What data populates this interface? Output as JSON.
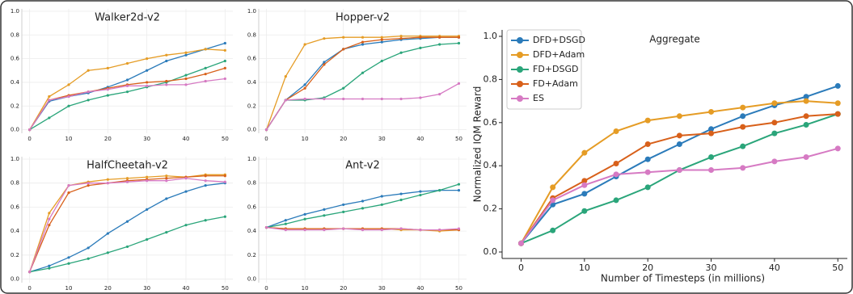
{
  "chart_data": [
    {
      "type": "line",
      "title": "Walker2d-v2",
      "x": [
        0,
        5,
        10,
        15,
        20,
        25,
        30,
        35,
        40,
        45,
        50
      ],
      "xlim": [
        -2,
        52
      ],
      "ylim": [
        -0.03,
        1.02
      ],
      "xticks": [
        0,
        10,
        20,
        30,
        40,
        50
      ],
      "yticks": [
        {
          "value": 0,
          "label": "0.0"
        },
        0.2,
        0.4,
        0.6,
        0.8,
        {
          "value": 1,
          "label": "1.0"
        }
      ],
      "grid": true,
      "series": [
        {
          "color": "#2b7bba",
          "values": [
            0,
            0.24,
            0.28,
            0.31,
            0.36,
            0.42,
            0.5,
            0.58,
            0.63,
            0.68,
            0.73
          ]
        },
        {
          "color": "#e59c25",
          "values": [
            0,
            0.28,
            0.38,
            0.5,
            0.52,
            0.56,
            0.6,
            0.63,
            0.65,
            0.68,
            0.67
          ]
        },
        {
          "color": "#2aa57a",
          "values": [
            0,
            0.1,
            0.2,
            0.25,
            0.29,
            0.32,
            0.36,
            0.4,
            0.46,
            0.52,
            0.58
          ]
        },
        {
          "color": "#d8601a",
          "values": [
            0,
            0.25,
            0.29,
            0.32,
            0.35,
            0.38,
            0.4,
            0.41,
            0.43,
            0.47,
            0.52
          ]
        },
        {
          "color": "#d67ac3",
          "values": [
            0,
            0.25,
            0.28,
            0.32,
            0.34,
            0.37,
            0.37,
            0.38,
            0.38,
            0.41,
            0.43
          ]
        }
      ]
    },
    {
      "type": "line",
      "title": "Hopper-v2",
      "x": [
        0,
        5,
        10,
        15,
        20,
        25,
        30,
        35,
        40,
        45,
        50
      ],
      "xlim": [
        -2,
        52
      ],
      "ylim": [
        -0.03,
        1.02
      ],
      "xticks": [
        0,
        10,
        20,
        30,
        40,
        50
      ],
      "yticks": [
        {
          "value": 0,
          "label": "0.0"
        },
        0.2,
        0.4,
        0.6,
        0.8,
        {
          "value": 1,
          "label": "1.0"
        }
      ],
      "grid": true,
      "series": [
        {
          "color": "#2b7bba",
          "values": [
            0,
            0.25,
            0.38,
            0.57,
            0.68,
            0.72,
            0.74,
            0.76,
            0.77,
            0.78,
            0.78
          ]
        },
        {
          "color": "#e59c25",
          "values": [
            0,
            0.45,
            0.72,
            0.77,
            0.78,
            0.78,
            0.78,
            0.79,
            0.79,
            0.79,
            0.79
          ]
        },
        {
          "color": "#2aa57a",
          "values": [
            0,
            0.25,
            0.25,
            0.27,
            0.35,
            0.48,
            0.58,
            0.65,
            0.69,
            0.72,
            0.73
          ]
        },
        {
          "color": "#d8601a",
          "values": [
            0,
            0.25,
            0.35,
            0.55,
            0.68,
            0.74,
            0.76,
            0.77,
            0.78,
            0.78,
            0.78
          ]
        },
        {
          "color": "#d67ac3",
          "values": [
            0,
            0.25,
            0.26,
            0.26,
            0.26,
            0.26,
            0.26,
            0.26,
            0.27,
            0.3,
            0.39
          ]
        }
      ]
    },
    {
      "type": "line",
      "title": "HalfCheetah-v2",
      "x": [
        0,
        5,
        10,
        15,
        20,
        25,
        30,
        35,
        40,
        45,
        50
      ],
      "xlim": [
        -2,
        52
      ],
      "ylim": [
        -0.03,
        1.02
      ],
      "xticks": [
        0,
        10,
        20,
        30,
        40,
        50
      ],
      "yticks": [
        {
          "value": 0,
          "label": "0.0"
        },
        0.2,
        0.4,
        0.6,
        0.8,
        {
          "value": 1,
          "label": "1.0"
        }
      ],
      "grid": true,
      "series": [
        {
          "color": "#2b7bba",
          "values": [
            0.06,
            0.11,
            0.18,
            0.26,
            0.38,
            0.48,
            0.58,
            0.67,
            0.73,
            0.78,
            0.8
          ]
        },
        {
          "color": "#e59c25",
          "values": [
            0.06,
            0.55,
            0.78,
            0.81,
            0.83,
            0.84,
            0.85,
            0.86,
            0.85,
            0.87,
            0.87
          ]
        },
        {
          "color": "#2aa57a",
          "values": [
            0.06,
            0.09,
            0.13,
            0.17,
            0.22,
            0.27,
            0.33,
            0.39,
            0.45,
            0.49,
            0.52
          ]
        },
        {
          "color": "#d8601a",
          "values": [
            0.06,
            0.45,
            0.72,
            0.78,
            0.8,
            0.82,
            0.83,
            0.84,
            0.85,
            0.86,
            0.86
          ]
        },
        {
          "color": "#d67ac3",
          "values": [
            0.06,
            0.5,
            0.78,
            0.8,
            0.8,
            0.81,
            0.82,
            0.82,
            0.84,
            0.82,
            0.81
          ]
        }
      ]
    },
    {
      "type": "line",
      "title": "Ant-v2",
      "x": [
        0,
        5,
        10,
        15,
        20,
        25,
        30,
        35,
        40,
        45,
        50
      ],
      "xlim": [
        -2,
        52
      ],
      "ylim": [
        -0.03,
        1.02
      ],
      "xticks": [
        0,
        10,
        20,
        30,
        40,
        50
      ],
      "yticks": [
        {
          "value": 0,
          "label": "0.0"
        },
        0.2,
        0.4,
        0.6,
        0.8,
        {
          "value": 1,
          "label": "1.0"
        }
      ],
      "grid": true,
      "series": [
        {
          "color": "#2b7bba",
          "values": [
            0.43,
            0.49,
            0.54,
            0.58,
            0.62,
            0.65,
            0.69,
            0.71,
            0.73,
            0.74,
            0.74
          ]
        },
        {
          "color": "#e59c25",
          "values": [
            0.43,
            0.42,
            0.42,
            0.42,
            0.42,
            0.42,
            0.42,
            0.41,
            0.41,
            0.4,
            0.41
          ]
        },
        {
          "color": "#2aa57a",
          "values": [
            0.43,
            0.46,
            0.5,
            0.53,
            0.56,
            0.59,
            0.62,
            0.66,
            0.7,
            0.74,
            0.79
          ]
        },
        {
          "color": "#d8601a",
          "values": [
            0.43,
            0.42,
            0.42,
            0.42,
            0.42,
            0.42,
            0.42,
            0.42,
            0.41,
            0.41,
            0.41
          ]
        },
        {
          "color": "#d67ac3",
          "values": [
            0.43,
            0.41,
            0.41,
            0.41,
            0.42,
            0.41,
            0.41,
            0.42,
            0.41,
            0.41,
            0.42
          ]
        }
      ]
    },
    {
      "type": "line",
      "title": "Aggregate",
      "x_label": "Number of Timesteps (in millions)",
      "y_label": "Normalized IQM Reward",
      "x": [
        0,
        5,
        10,
        15,
        20,
        25,
        30,
        35,
        40,
        45,
        50
      ],
      "xlim": [
        -3,
        51.5
      ],
      "ylim": [
        -0.03,
        1.03
      ],
      "xticks": [
        0,
        10,
        20,
        30,
        40,
        50
      ],
      "yticks": [
        {
          "value": 0,
          "label": "0.0"
        },
        0.2,
        0.4,
        0.6,
        0.8,
        {
          "value": 1,
          "label": "1.0"
        }
      ],
      "grid": false,
      "legend": "upper left",
      "series": [
        {
          "name": "DFD+DSGD",
          "color": "#2b7bba",
          "values": [
            0.04,
            0.22,
            0.27,
            0.35,
            0.43,
            0.5,
            0.57,
            0.63,
            0.68,
            0.72,
            0.77
          ]
        },
        {
          "name": "DFD+Adam",
          "color": "#e59c25",
          "values": [
            0.04,
            0.3,
            0.46,
            0.56,
            0.61,
            0.63,
            0.65,
            0.67,
            0.69,
            0.7,
            0.69
          ]
        },
        {
          "name": "FD+DSGD",
          "color": "#2aa57a",
          "values": [
            0.04,
            0.1,
            0.19,
            0.24,
            0.3,
            0.38,
            0.44,
            0.49,
            0.55,
            0.59,
            0.64
          ]
        },
        {
          "name": "FD+Adam",
          "color": "#d8601a",
          "values": [
            0.04,
            0.25,
            0.33,
            0.41,
            0.5,
            0.54,
            0.55,
            0.58,
            0.6,
            0.63,
            0.64
          ]
        },
        {
          "name": "ES",
          "color": "#d67ac3",
          "values": [
            0.04,
            0.24,
            0.31,
            0.36,
            0.37,
            0.38,
            0.38,
            0.39,
            0.42,
            0.44,
            0.48
          ]
        }
      ]
    }
  ]
}
